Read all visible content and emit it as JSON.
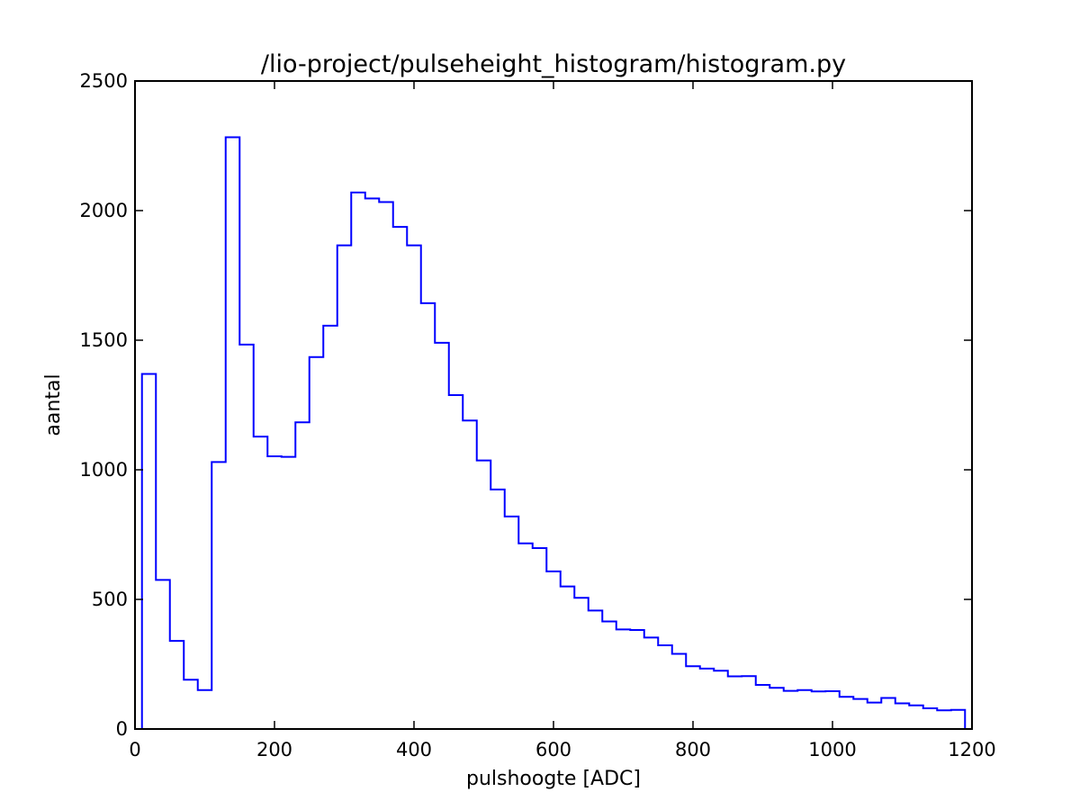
{
  "chart_data": {
    "type": "histogram",
    "title": "/lio-project/pulseheight_histogram/histogram.py",
    "xlabel": "pulshoogte [ADC]",
    "ylabel": "aantal",
    "xlim": [
      0,
      1200
    ],
    "ylim": [
      0,
      2500
    ],
    "xticks": [
      0,
      200,
      400,
      600,
      800,
      1000,
      1200
    ],
    "yticks": [
      0,
      500,
      1000,
      1500,
      2000,
      2500
    ],
    "grid": false,
    "line_color": "#0000ff",
    "bin_edges": [
      10,
      30,
      50,
      70,
      90,
      110,
      130,
      150,
      170,
      190,
      210,
      230,
      250,
      270,
      290,
      310,
      330,
      350,
      370,
      390,
      410,
      430,
      450,
      470,
      490,
      510,
      530,
      550,
      570,
      590,
      610,
      630,
      650,
      670,
      690,
      710,
      730,
      750,
      770,
      790,
      810,
      830,
      850,
      870,
      890,
      910,
      930,
      950,
      970,
      990,
      1010,
      1030,
      1050,
      1070,
      1090,
      1110,
      1130,
      1150,
      1170,
      1190
    ],
    "counts": [
      1370,
      575,
      340,
      190,
      150,
      1030,
      2283,
      1483,
      1128,
      1052,
      1050,
      1183,
      1435,
      1556,
      1866,
      2070,
      2047,
      2033,
      1937,
      1866,
      1643,
      1490,
      1288,
      1190,
      1036,
      924,
      820,
      716,
      698,
      608,
      550,
      506,
      457,
      415,
      384,
      382,
      353,
      323,
      290,
      242,
      233,
      225,
      203,
      204,
      170,
      159,
      147,
      150,
      145,
      146,
      124,
      116,
      102,
      120,
      99,
      91,
      80,
      72,
      74
    ]
  }
}
